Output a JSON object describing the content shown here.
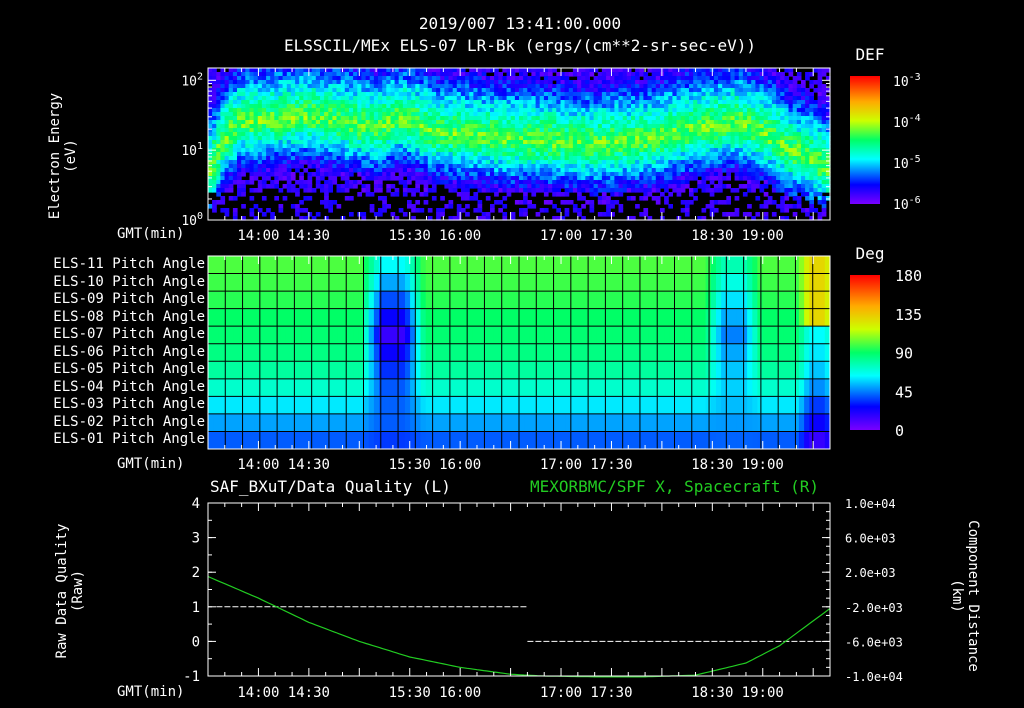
{
  "header": {
    "timestamp": "2019/007 13:41:00.000",
    "subtitle": "ELSSCIL/MEx ELS-07 LR-Bk  (ergs/(cm**2-sr-sec-eV))"
  },
  "gmt_label": "GMT(min)",
  "time_ticks": [
    "14:00",
    "14:30",
    "15:30",
    "16:00",
    "17:00",
    "17:30",
    "18:30",
    "19:00"
  ],
  "colors": {
    "background": "#000000",
    "axis": "#ffffff",
    "spacecraft_line": "#22cc22",
    "quality_line": "#ffffff",
    "component_label": "#22cc22"
  },
  "chart_data": [
    {
      "type": "heatmap",
      "name": "electron-energy-spectrogram",
      "ylabel": [
        "Electron Energy",
        "(eV)"
      ],
      "yscale": "log",
      "ylim": [
        1,
        150
      ],
      "y_ticks": [
        {
          "value": 1,
          "base": "10",
          "exp": "0"
        },
        {
          "value": 10,
          "base": "10",
          "exp": "1"
        },
        {
          "value": 100,
          "base": "10",
          "exp": "2"
        }
      ],
      "xlim_min": [
        810,
        1180
      ],
      "colorbar": {
        "label": "DEF",
        "scale": "log",
        "ticks": [
          {
            "value": 0.001,
            "base": "10",
            "exp": "-3"
          },
          {
            "value": 0.0001,
            "base": "10",
            "exp": "-4"
          },
          {
            "value": 1e-05,
            "base": "10",
            "exp": "-5"
          },
          {
            "value": 1e-06,
            "base": "10",
            "exp": "-6"
          }
        ]
      },
      "band_center_eV": [
        [
          812,
          5
        ],
        [
          830,
          25
        ],
        [
          870,
          30
        ],
        [
          910,
          20
        ],
        [
          925,
          28
        ],
        [
          945,
          18
        ],
        [
          990,
          14
        ],
        [
          1040,
          12
        ],
        [
          1075,
          14
        ],
        [
          1100,
          20
        ],
        [
          1125,
          25
        ],
        [
          1155,
          10
        ],
        [
          1180,
          5
        ]
      ]
    },
    {
      "type": "heatmap",
      "name": "pitch-angle-map",
      "rows": [
        "ELS-11 Pitch Angle",
        "ELS-10 Pitch Angle",
        "ELS-09 Pitch Angle",
        "ELS-08 Pitch Angle",
        "ELS-07 Pitch Angle",
        "ELS-06 Pitch Angle",
        "ELS-05 Pitch Angle",
        "ELS-04 Pitch Angle",
        "ELS-03 Pitch Angle",
        "ELS-02 Pitch Angle",
        "ELS-01 Pitch Angle"
      ],
      "xlim_min": [
        810,
        1180
      ],
      "colorbar": {
        "label": "Deg",
        "min": 0,
        "max": 180,
        "ticks": [
          "180",
          "135",
          "90",
          "45",
          "0"
        ]
      },
      "baseline_deg": [
        100,
        98,
        95,
        90,
        88,
        85,
        80,
        72,
        60,
        50,
        40
      ],
      "dip_regions": [
        {
          "start_min": 905,
          "end_min": 935,
          "min_deg": 15
        },
        {
          "start_min": 1110,
          "end_min": 1135,
          "min_deg": 45
        },
        {
          "start_min": 1165,
          "end_min": 1180,
          "min_deg": 130
        }
      ]
    },
    {
      "type": "line",
      "name": "data-quality-and-spacecraft-x",
      "left_title": "SAF_BXuT/Data Quality (L)",
      "right_title": "MEXORBMC/SPF X, Spacecraft (R)",
      "ylabel_left": [
        "Raw Data Quality",
        "(Raw)"
      ],
      "ylabel_right": [
        "Component Distance",
        "(km)"
      ],
      "ylim_left": [
        -1,
        4
      ],
      "left_ticks": [
        "4",
        "3",
        "2",
        "1",
        "0",
        "-1"
      ],
      "ylim_right": [
        -10000,
        10000
      ],
      "right_ticks": [
        "1.0e+04",
        "6.0e+03",
        "2.0e+03",
        "-2.0e+03",
        "-6.0e+03",
        "-1.0e+04"
      ],
      "xlim_min": [
        810,
        1180
      ],
      "series": [
        {
          "name": "Data Quality",
          "axis": "left",
          "segments": [
            {
              "x": [
                815,
                1000
              ],
              "y": [
                1,
                1
              ]
            },
            {
              "x": [
                1000,
                1178
              ],
              "y": [
                0,
                0
              ]
            }
          ]
        },
        {
          "name": "Spacecraft X",
          "axis": "right",
          "x": [
            810,
            840,
            870,
            900,
            930,
            960,
            990,
            1010,
            1040,
            1070,
            1100,
            1130,
            1150,
            1180
          ],
          "y": [
            1500,
            -1000,
            -3800,
            -6000,
            -7800,
            -9000,
            -9800,
            -10000,
            -10100,
            -10100,
            -9900,
            -8500,
            -6500,
            -2200
          ]
        }
      ]
    }
  ]
}
